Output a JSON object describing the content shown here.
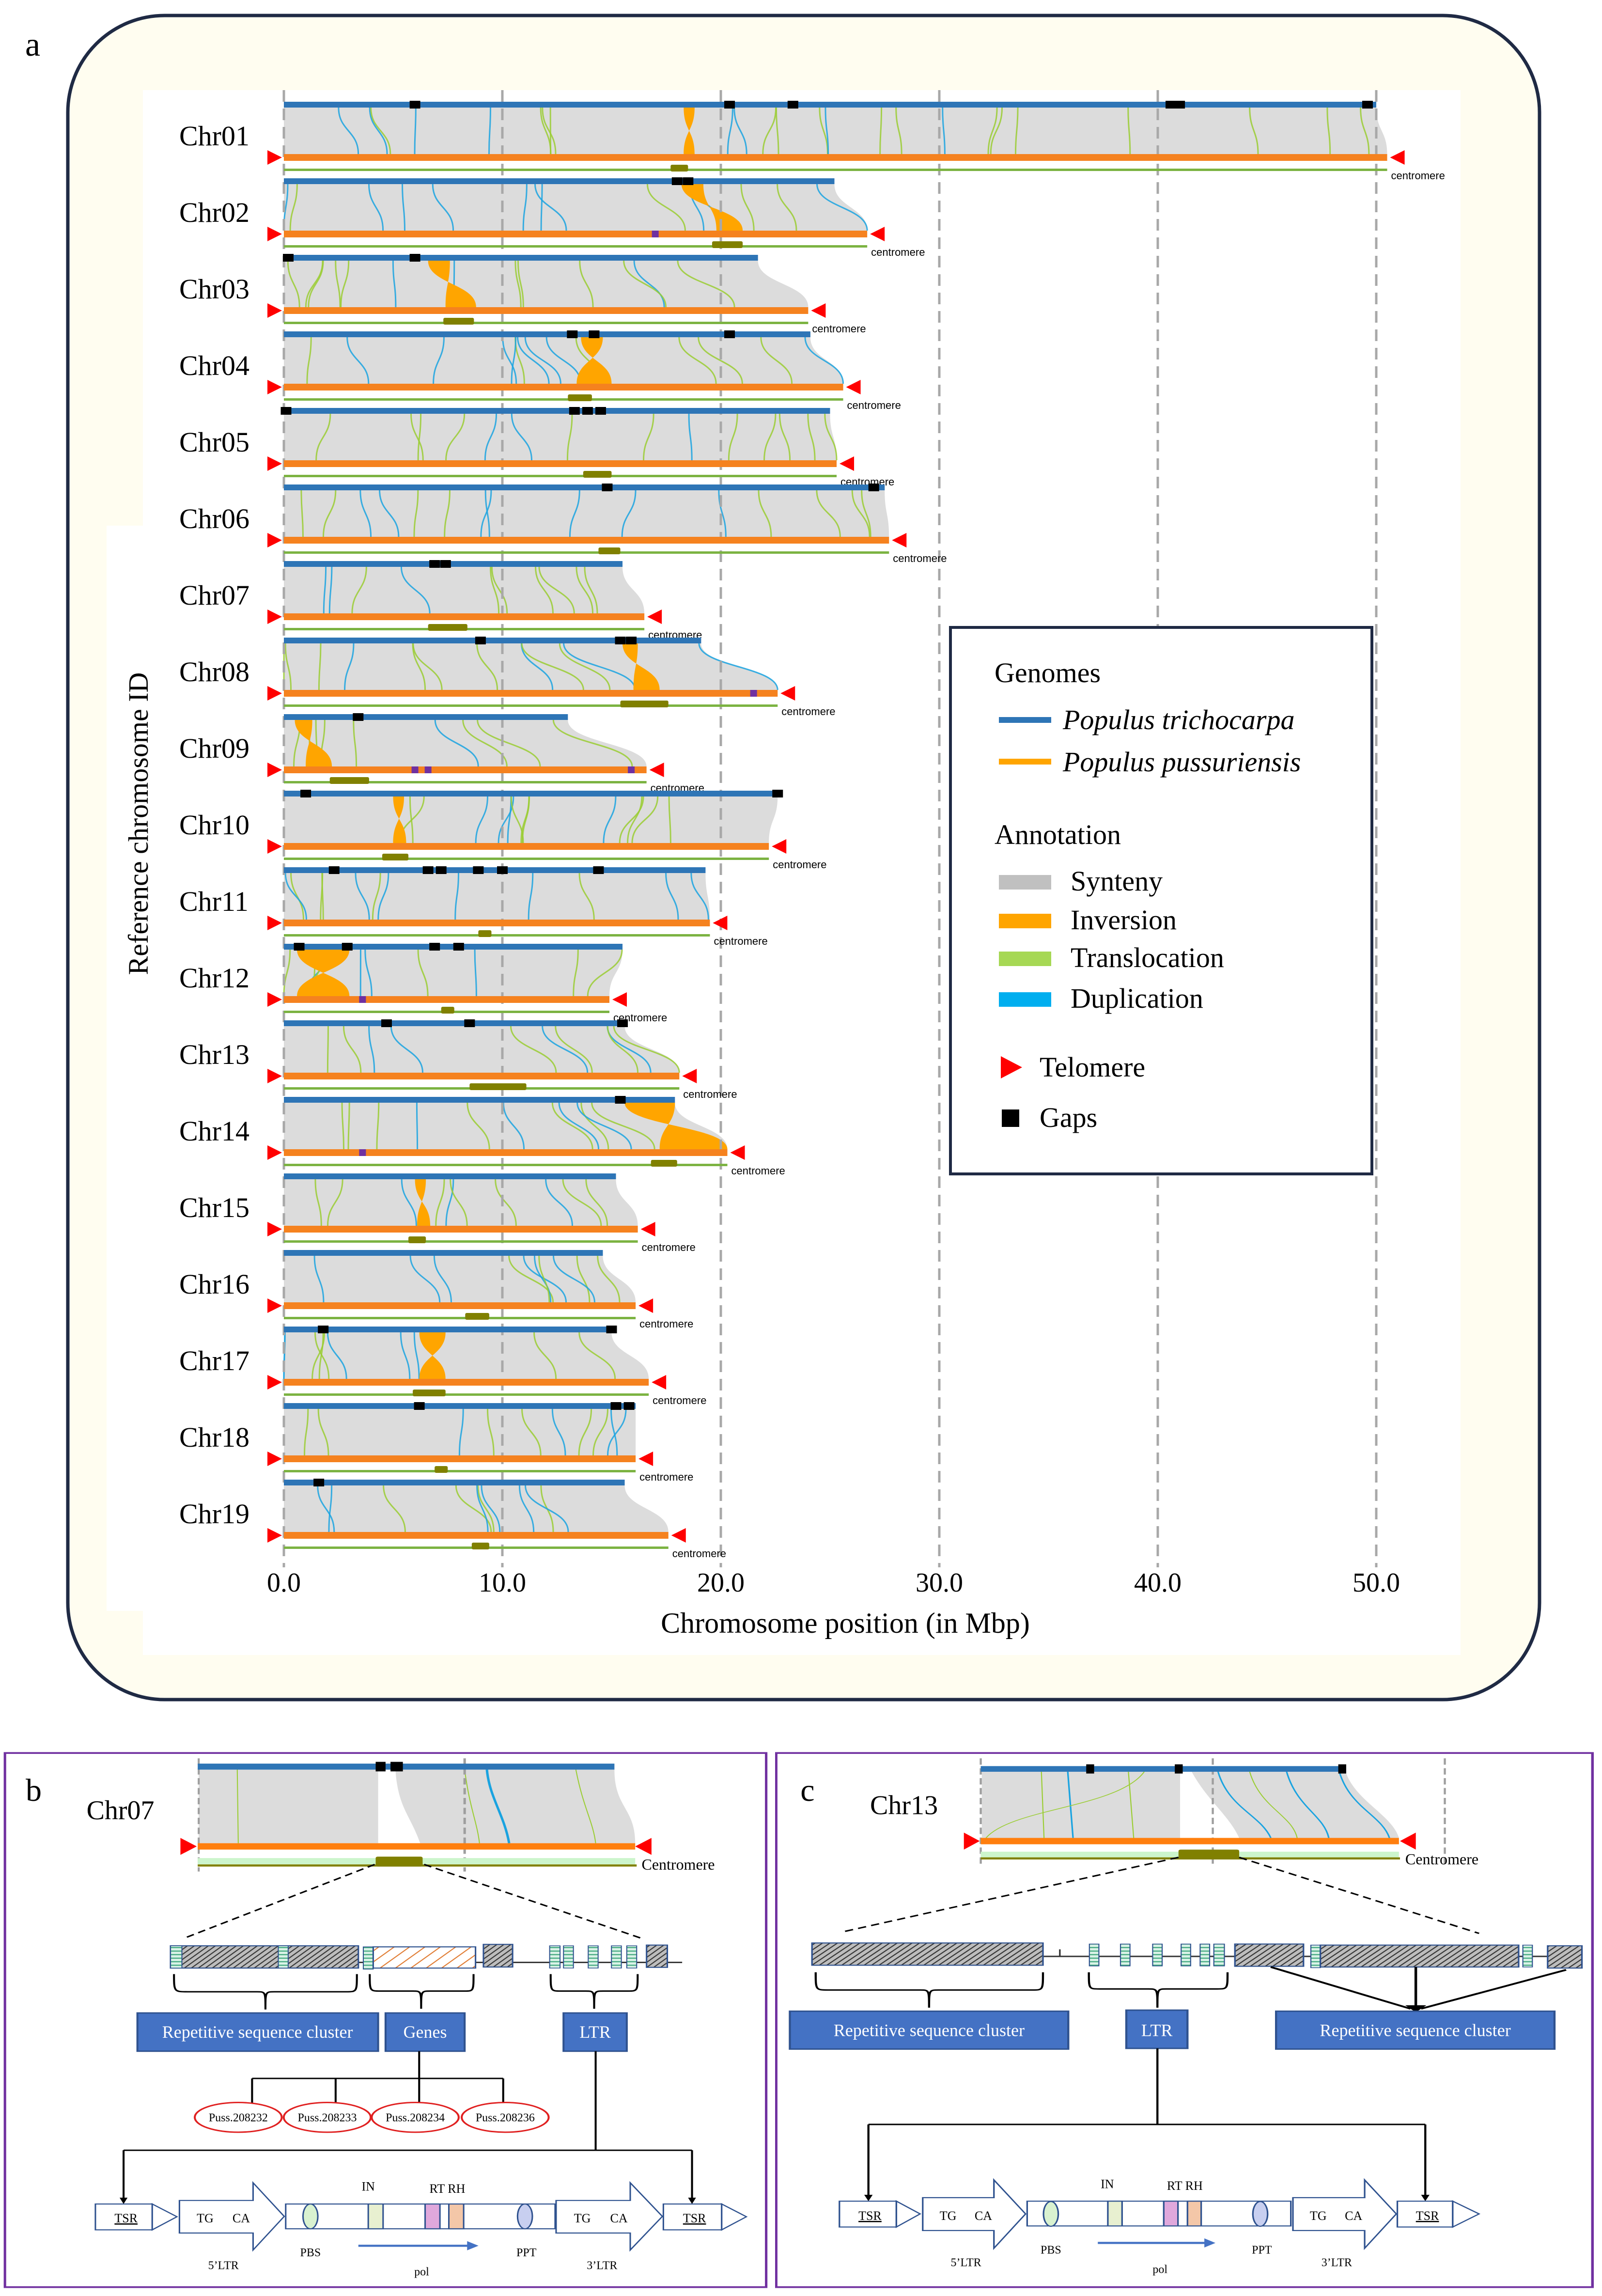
{
  "panel_labels": {
    "a": "a",
    "b": "b",
    "c": "c"
  },
  "colors": {
    "trichocarpa": "#2e75b6",
    "pussuriensis": "#f5821f",
    "synteny": "#d9d9d9",
    "inversion": "#ffa500",
    "translocation": "#9acd32",
    "duplication": "#1aa3e0",
    "telomere": "#ff0000",
    "gap": "#000000",
    "centromere_block": "#808000",
    "centromere_track": "#7cb342",
    "panel_a_frame_fill": "#fffdf0",
    "panel_a_frame": "#1f2a44",
    "panel_border": "#7030a0",
    "box_fill": "#4472c4",
    "gene_oval": "#e02020"
  },
  "panel_a": {
    "y_axis_title": "Reference chromosome ID",
    "x_axis_title": "Chromosome position (in Mbp)",
    "x_range": [
      0,
      50
    ],
    "x_tick_values": [
      0,
      10,
      20,
      30,
      40,
      50
    ],
    "x_ticks": [
      "0.0",
      "10.0",
      "20.0",
      "30.0",
      "40.0",
      "50.0"
    ],
    "centromere_label": "centromere",
    "chromosomes": [
      {
        "id": "Chr01",
        "ref_length": 50.0,
        "query_length": 50.5,
        "centromere": [
          17.7,
          18.5
        ],
        "gaps": [
          6.0,
          20.4,
          23.3,
          40.6,
          41.0,
          49.6
        ],
        "query_marks": [],
        "inversions": [
          {
            "ref": [
              18.3,
              18.8
            ],
            "query": [
              18.3,
              18.8
            ]
          }
        ]
      },
      {
        "id": "Chr02",
        "ref_length": 25.2,
        "query_length": 26.7,
        "centromere": [
          19.6,
          21.0
        ],
        "gaps": [
          18.0,
          18.5
        ],
        "query_marks": [
          17.0
        ],
        "inversions": [
          {
            "ref": [
              18.2,
              19.2
            ],
            "query": [
              19.8,
              21.0
            ]
          }
        ]
      },
      {
        "id": "Chr03",
        "ref_length": 21.7,
        "query_length": 24.0,
        "centromere": [
          7.3,
          8.7
        ],
        "gaps": [
          0.2,
          6.0
        ],
        "query_marks": [],
        "inversions": [
          {
            "ref": [
              6.6,
              7.6
            ],
            "query": [
              7.4,
              8.8
            ]
          }
        ]
      },
      {
        "id": "Chr04",
        "ref_length": 24.1,
        "query_length": 25.6,
        "centromere": [
          13.0,
          14.1
        ],
        "gaps": [
          13.2,
          14.2,
          20.4
        ],
        "query_marks": [],
        "inversions": [
          {
            "ref": [
              13.6,
              14.6
            ],
            "query": [
              13.4,
              15.0
            ]
          }
        ]
      },
      {
        "id": "Chr05",
        "ref_length": 25.0,
        "query_length": 25.3,
        "centromere": [
          13.7,
          15.0
        ],
        "gaps": [
          0.1,
          13.3,
          13.9,
          14.5
        ],
        "query_marks": [],
        "inversions": []
      },
      {
        "id": "Chr06",
        "ref_length": 27.5,
        "query_length": 27.7,
        "centromere": [
          14.4,
          15.4
        ],
        "gaps": [
          14.8,
          27.0
        ],
        "query_marks": [],
        "inversions": []
      },
      {
        "id": "Chr07",
        "ref_length": 15.5,
        "query_length": 16.5,
        "centromere": [
          6.6,
          8.4
        ],
        "gaps": [
          6.9,
          7.4
        ],
        "query_marks": [],
        "inversions": []
      },
      {
        "id": "Chr08",
        "ref_length": 19.1,
        "query_length": 22.6,
        "centromere": [
          15.4,
          17.6
        ],
        "gaps": [
          9.0,
          15.4,
          15.9
        ],
        "query_marks": [
          21.5
        ],
        "inversions": [
          {
            "ref": [
              15.5,
              16.2
            ],
            "query": [
              16.0,
              17.2
            ]
          }
        ]
      },
      {
        "id": "Chr09",
        "ref_length": 13.0,
        "query_length": 16.6,
        "centromere": [
          2.1,
          3.9
        ],
        "gaps": [
          3.4
        ],
        "query_marks": [
          6.0,
          6.6,
          15.9
        ],
        "inversions": [
          {
            "ref": [
              0.5,
              1.3
            ],
            "query": [
              1.0,
              2.2
            ]
          }
        ]
      },
      {
        "id": "Chr10",
        "ref_length": 22.6,
        "query_length": 22.2,
        "centromere": [
          4.5,
          5.7
        ],
        "gaps": [
          1.0,
          22.6
        ],
        "query_marks": [],
        "inversions": [
          {
            "ref": [
              5.0,
              5.5
            ],
            "query": [
              5.0,
              5.6
            ]
          }
        ]
      },
      {
        "id": "Chr11",
        "ref_length": 19.3,
        "query_length": 19.5,
        "centromere": [
          8.9,
          9.5
        ],
        "gaps": [
          2.3,
          6.6,
          7.2,
          8.9,
          10.0,
          14.4
        ],
        "query_marks": [],
        "inversions": []
      },
      {
        "id": "Chr12",
        "ref_length": 15.5,
        "query_length": 14.9,
        "centromere": [
          7.2,
          7.8
        ],
        "gaps": [
          0.7,
          2.9,
          6.9,
          8.0
        ],
        "query_marks": [
          3.6
        ],
        "inversions": [
          {
            "ref": [
              0.6,
              3.0
            ],
            "query": [
              0.6,
              3.0
            ]
          }
        ]
      },
      {
        "id": "Chr13",
        "ref_length": 15.6,
        "query_length": 18.1,
        "centromere": [
          8.5,
          11.1
        ],
        "gaps": [
          4.7,
          8.5,
          15.5
        ],
        "query_marks": [],
        "inversions": []
      },
      {
        "id": "Chr14",
        "ref_length": 17.9,
        "query_length": 20.3,
        "centromere": [
          16.8,
          18.0
        ],
        "gaps": [
          15.4
        ],
        "query_marks": [
          3.6
        ],
        "inversions": [
          {
            "ref": [
              15.6,
              17.9
            ],
            "query": [
              17.2,
              20.3
            ]
          }
        ]
      },
      {
        "id": "Chr15",
        "ref_length": 15.2,
        "query_length": 16.2,
        "centromere": [
          5.7,
          6.5
        ],
        "gaps": [],
        "query_marks": [],
        "inversions": [
          {
            "ref": [
              6.0,
              6.5
            ],
            "query": [
              6.1,
              6.7
            ]
          }
        ]
      },
      {
        "id": "Chr16",
        "ref_length": 14.6,
        "query_length": 16.1,
        "centromere": [
          8.3,
          9.4
        ],
        "gaps": [],
        "query_marks": [],
        "inversions": []
      },
      {
        "id": "Chr17",
        "ref_length": 15.0,
        "query_length": 16.7,
        "centromere": [
          5.9,
          7.4
        ],
        "gaps": [
          1.8,
          15.0
        ],
        "query_marks": [],
        "inversions": [
          {
            "ref": [
              6.2,
              7.4
            ],
            "query": [
              6.2,
              7.4
            ]
          }
        ]
      },
      {
        "id": "Chr18",
        "ref_length": 16.1,
        "query_length": 16.1,
        "centromere": [
          6.9,
          7.5
        ],
        "gaps": [
          6.2,
          15.2,
          15.8
        ],
        "query_marks": [],
        "inversions": []
      },
      {
        "id": "Chr19",
        "ref_length": 15.6,
        "query_length": 17.6,
        "centromere": [
          8.6,
          9.4
        ],
        "gaps": [
          1.6
        ],
        "query_marks": [],
        "inversions": []
      }
    ]
  },
  "legend": {
    "genomes_title": "Genomes",
    "genomes": [
      {
        "label": "Populus trichocarpa",
        "color": "#2e75b6"
      },
      {
        "label": "Populus pussuriensis",
        "color": "#ffa500"
      }
    ],
    "annotation_title": "Annotation",
    "annotations": [
      {
        "label": "Synteny",
        "color": "#c0c0c0"
      },
      {
        "label": "Inversion",
        "color": "#ffa500"
      },
      {
        "label": "Translocation",
        "color": "#a6d854"
      },
      {
        "label": "Duplication",
        "color": "#00aeef"
      }
    ],
    "telomere_label": "Telomere",
    "gaps_label": "Gaps"
  },
  "panel_b": {
    "chromosome": "Chr07",
    "centromere_label": "Centromere",
    "boxes": {
      "repetitive": "Repetitive sequence cluster",
      "genes": "Genes",
      "ltr": "LTR"
    },
    "genes": [
      "Puss.208232",
      "Puss.208233",
      "Puss.208234",
      "Puss.208236"
    ]
  },
  "panel_c": {
    "chromosome": "Chr13",
    "centromere_label": "Centromere",
    "boxes": {
      "repetitive_left": "Repetitive sequence cluster",
      "ltr": "LTR",
      "repetitive_right": "Repetitive sequence cluster"
    }
  },
  "ltr_structure": {
    "tsr": "TSR",
    "tg": "TG",
    "ca": "CA",
    "ltr5": "5’LTR",
    "ltr3": "3’LTR",
    "pbs": "PBS",
    "ppt": "PPT",
    "in": "IN",
    "rt_rh": "RT RH",
    "pol": "pol"
  }
}
